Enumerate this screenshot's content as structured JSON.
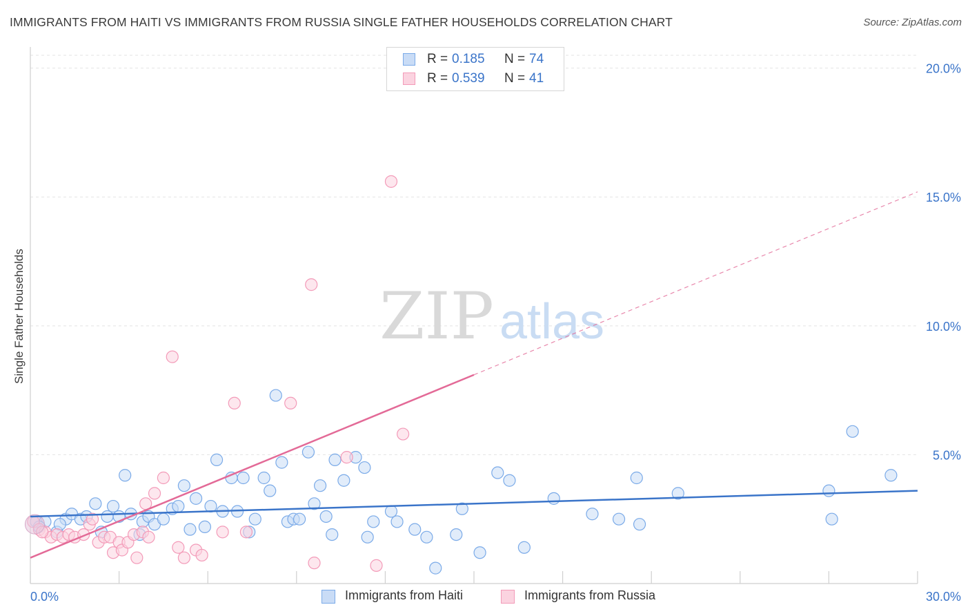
{
  "title": "IMMIGRANTS FROM HAITI VS IMMIGRANTS FROM RUSSIA SINGLE FATHER HOUSEHOLDS CORRELATION CHART",
  "source": "Source: ZipAtlas.com",
  "watermark": {
    "zip": "ZIP",
    "atlas": "atlas"
  },
  "legend_top": [
    {
      "r_label": "R =",
      "r_value": "0.185",
      "n_label": "N =",
      "n_value": "74",
      "color": "#7aaae8",
      "fill": "#c9dcf6"
    },
    {
      "r_label": "R =",
      "r_value": "0.539",
      "n_label": "N =",
      "n_value": "41",
      "color": "#f39ab8",
      "fill": "#fbd3e0"
    }
  ],
  "legend_bottom": [
    {
      "label": "Immigrants from Haiti",
      "color": "#7aaae8",
      "fill": "#c9dcf6"
    },
    {
      "label": "Immigrants from Russia",
      "color": "#f39ab8",
      "fill": "#fbd3e0"
    }
  ],
  "chart_data": {
    "type": "scatter",
    "title": "IMMIGRANTS FROM HAITI VS IMMIGRANTS FROM RUSSIA SINGLE FATHER HOUSEHOLDS CORRELATION CHART",
    "xlabel": "",
    "ylabel": "Single Father Households",
    "xlim": [
      0,
      30
    ],
    "ylim": [
      0,
      20.5
    ],
    "x_tick_labels": [
      "0.0%",
      "30.0%"
    ],
    "y_ticks": [
      5,
      10,
      15,
      20
    ],
    "y_tick_labels": [
      "5.0%",
      "10.0%",
      "15.0%",
      "20.0%"
    ],
    "grid": true,
    "legend": "top-center",
    "series": [
      {
        "name": "Immigrants from Haiti",
        "color": "#7aaae8",
        "fill": "#c9dcf6",
        "trend": {
          "x": [
            0,
            30
          ],
          "y": [
            2.6,
            3.6
          ],
          "color": "#3a74c9",
          "dashed_from": null
        },
        "points": [
          [
            0.2,
            2.4
          ],
          [
            0.5,
            2.4
          ],
          [
            0.9,
            2.0
          ],
          [
            1.2,
            2.5
          ],
          [
            1.4,
            2.7
          ],
          [
            1.7,
            2.5
          ],
          [
            1.9,
            2.6
          ],
          [
            2.2,
            3.1
          ],
          [
            2.4,
            2.0
          ],
          [
            2.6,
            2.6
          ],
          [
            2.8,
            3.0
          ],
          [
            3.0,
            2.6
          ],
          [
            3.2,
            4.2
          ],
          [
            3.4,
            2.7
          ],
          [
            3.7,
            1.9
          ],
          [
            3.8,
            2.4
          ],
          [
            4.0,
            2.6
          ],
          [
            4.2,
            2.3
          ],
          [
            4.5,
            2.5
          ],
          [
            4.8,
            2.9
          ],
          [
            5.0,
            3.0
          ],
          [
            5.2,
            3.8
          ],
          [
            5.4,
            2.1
          ],
          [
            5.6,
            3.3
          ],
          [
            5.9,
            2.2
          ],
          [
            6.1,
            3.0
          ],
          [
            6.3,
            4.8
          ],
          [
            6.5,
            2.8
          ],
          [
            6.8,
            4.1
          ],
          [
            7.0,
            2.8
          ],
          [
            7.2,
            4.1
          ],
          [
            7.4,
            2.0
          ],
          [
            7.6,
            2.5
          ],
          [
            7.9,
            4.1
          ],
          [
            8.1,
            3.6
          ],
          [
            8.3,
            7.3
          ],
          [
            8.5,
            4.7
          ],
          [
            8.7,
            2.4
          ],
          [
            8.9,
            2.5
          ],
          [
            9.1,
            2.5
          ],
          [
            9.4,
            5.1
          ],
          [
            9.6,
            3.1
          ],
          [
            9.8,
            3.8
          ],
          [
            10.0,
            2.6
          ],
          [
            10.2,
            1.9
          ],
          [
            10.3,
            4.8
          ],
          [
            10.6,
            4.0
          ],
          [
            11.0,
            4.9
          ],
          [
            11.3,
            4.5
          ],
          [
            11.4,
            1.8
          ],
          [
            11.6,
            2.4
          ],
          [
            12.2,
            2.8
          ],
          [
            12.4,
            2.4
          ],
          [
            13.0,
            2.1
          ],
          [
            13.4,
            1.8
          ],
          [
            13.7,
            0.6
          ],
          [
            14.4,
            1.9
          ],
          [
            14.6,
            2.9
          ],
          [
            15.2,
            1.2
          ],
          [
            15.8,
            4.3
          ],
          [
            16.2,
            4.0
          ],
          [
            16.7,
            1.4
          ],
          [
            17.7,
            3.3
          ],
          [
            19.0,
            2.7
          ],
          [
            19.9,
            2.5
          ],
          [
            20.5,
            4.1
          ],
          [
            20.6,
            2.3
          ],
          [
            21.9,
            3.5
          ],
          [
            27.0,
            3.6
          ],
          [
            27.1,
            2.5
          ],
          [
            27.8,
            5.9
          ],
          [
            29.1,
            4.2
          ],
          [
            0.3,
            2.2
          ],
          [
            1.0,
            2.3
          ]
        ]
      },
      {
        "name": "Immigrants from Russia",
        "color": "#f39ab8",
        "fill": "#fbd3e0",
        "trend": {
          "x": [
            0,
            30
          ],
          "y": [
            1.0,
            15.2
          ],
          "color": "#e36a97",
          "solid_until_x": 15
        },
        "points": [
          [
            0.1,
            2.4
          ],
          [
            0.3,
            2.1
          ],
          [
            0.5,
            2.0
          ],
          [
            0.7,
            1.8
          ],
          [
            0.9,
            1.9
          ],
          [
            1.1,
            1.8
          ],
          [
            1.3,
            1.9
          ],
          [
            1.5,
            1.8
          ],
          [
            1.8,
            1.9
          ],
          [
            2.0,
            2.3
          ],
          [
            2.1,
            2.5
          ],
          [
            2.3,
            1.6
          ],
          [
            2.5,
            1.8
          ],
          [
            2.7,
            1.8
          ],
          [
            2.8,
            1.2
          ],
          [
            3.0,
            1.6
          ],
          [
            3.1,
            1.3
          ],
          [
            3.3,
            1.6
          ],
          [
            3.5,
            1.9
          ],
          [
            3.6,
            1.0
          ],
          [
            3.8,
            2.0
          ],
          [
            3.9,
            3.1
          ],
          [
            4.0,
            1.8
          ],
          [
            4.2,
            3.5
          ],
          [
            4.5,
            4.1
          ],
          [
            4.8,
            8.8
          ],
          [
            5.0,
            1.4
          ],
          [
            5.2,
            1.0
          ],
          [
            5.6,
            1.3
          ],
          [
            5.8,
            1.1
          ],
          [
            6.5,
            2.0
          ],
          [
            6.9,
            7.0
          ],
          [
            7.3,
            2.0
          ],
          [
            8.8,
            7.0
          ],
          [
            9.5,
            11.6
          ],
          [
            9.6,
            0.8
          ],
          [
            10.7,
            4.9
          ],
          [
            11.7,
            0.7
          ],
          [
            12.2,
            15.6
          ],
          [
            12.6,
            5.8
          ],
          [
            0.4,
            2.0
          ]
        ]
      }
    ]
  }
}
